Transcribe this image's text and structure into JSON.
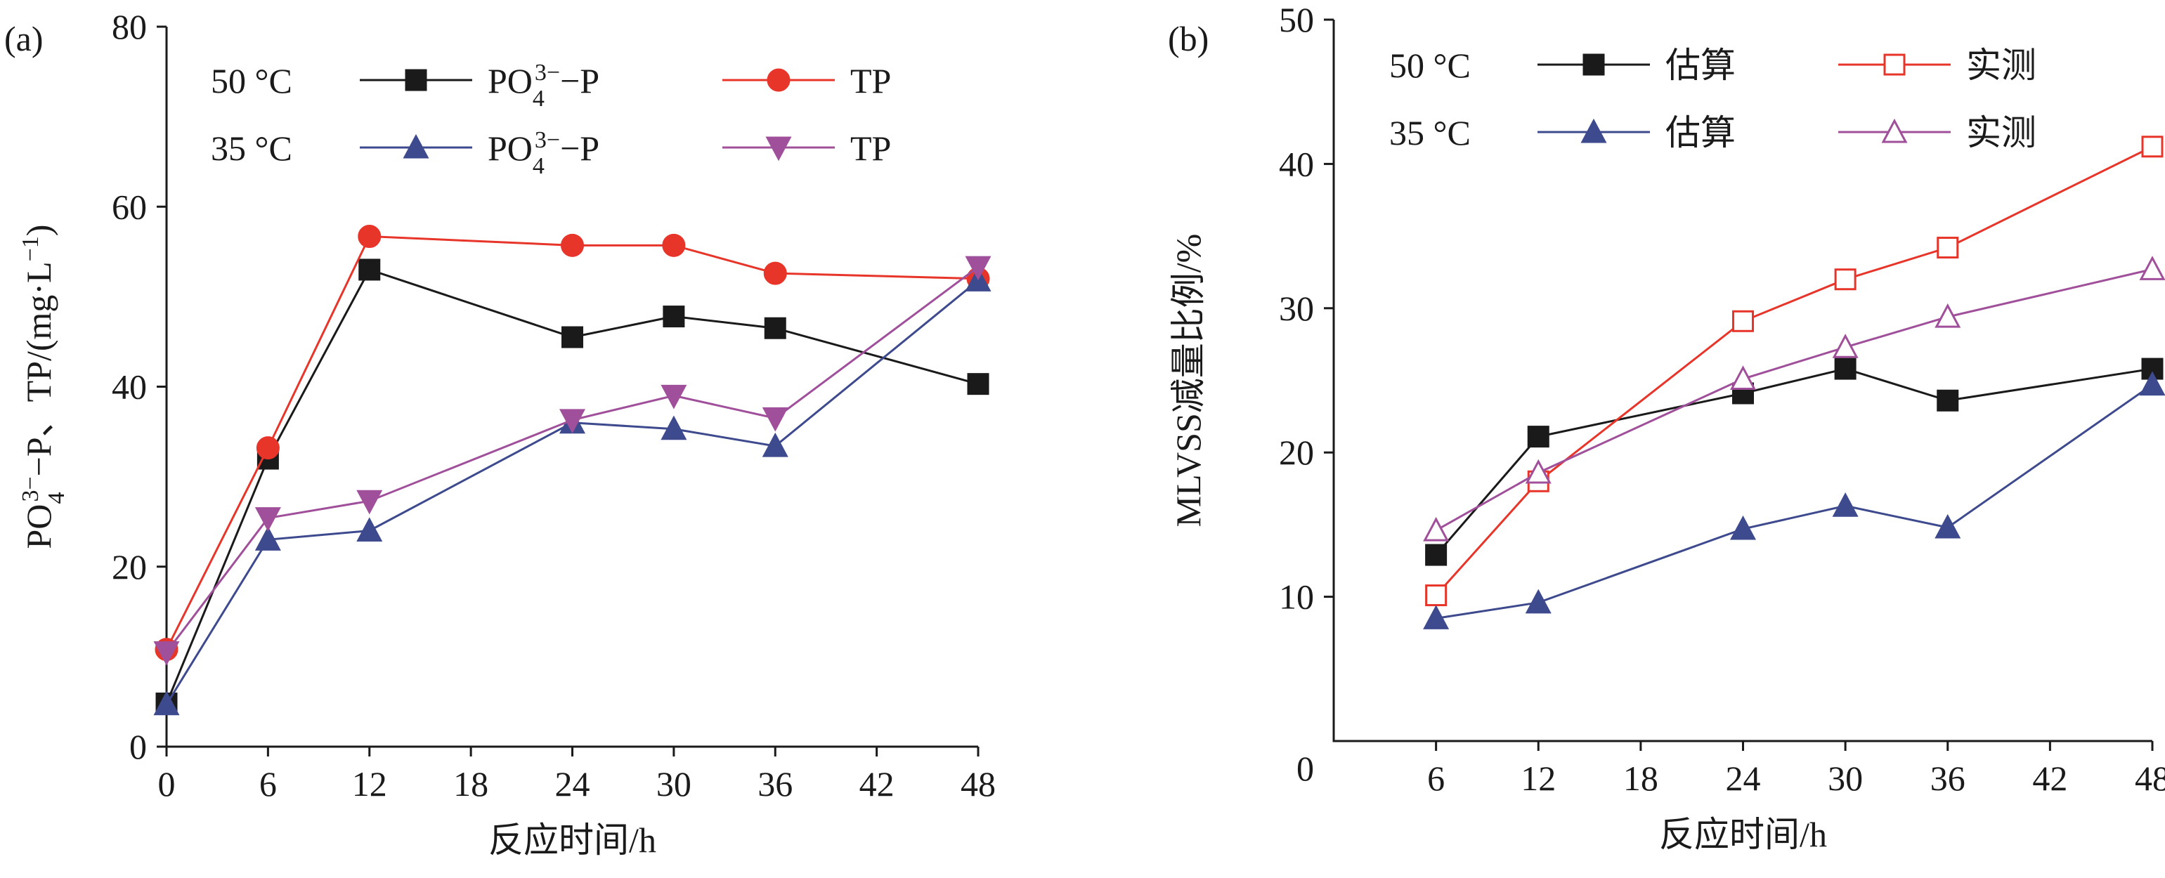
{
  "chart_data": [
    {
      "panel": "(a)",
      "type": "line",
      "xlabel": "反应时间/h",
      "ylabel": {
        "pre": "PO",
        "sub": "4",
        "sup": "3−",
        "post": "−P、TP/(mg·L",
        "unit_sup": "−1",
        "close": ")"
      },
      "xlim": [
        0,
        48
      ],
      "ylim": [
        0,
        80
      ],
      "xticks": [
        0,
        6,
        12,
        18,
        24,
        30,
        36,
        42,
        48
      ],
      "yticks": [
        0,
        20,
        40,
        60,
        80
      ],
      "legend_groups": [
        "50 °C",
        "35 °C"
      ],
      "series": [
        {
          "group": 0,
          "name": {
            "pre": "PO",
            "sub": "4",
            "sup": "3−",
            "post": "−P"
          },
          "color": "#1a1a1a",
          "marker": "square-filled",
          "x": [
            0,
            6,
            12,
            24,
            30,
            36,
            48
          ],
          "values": [
            4.8,
            32,
            53,
            45.5,
            47.8,
            46.5,
            40.3
          ]
        },
        {
          "group": 0,
          "name": {
            "pre": "TP"
          },
          "color": "#e8352a",
          "marker": "circle-filled",
          "x": [
            0,
            6,
            12,
            24,
            30,
            36,
            48
          ],
          "values": [
            10.8,
            33.2,
            56.7,
            55.7,
            55.7,
            52.6,
            52
          ]
        },
        {
          "group": 1,
          "name": {
            "pre": "PO",
            "sub": "4",
            "sup": "3−",
            "post": "−P"
          },
          "color": "#3e4a8e",
          "marker": "triangle-up-filled",
          "x": [
            0,
            6,
            12,
            24,
            30,
            36,
            48
          ],
          "values": [
            4.7,
            23,
            24,
            36,
            35.3,
            33.4,
            51.8
          ]
        },
        {
          "group": 1,
          "name": {
            "pre": "TP"
          },
          "color": "#a0509a",
          "marker": "triangle-down-filled",
          "x": [
            0,
            6,
            12,
            24,
            30,
            36,
            48
          ],
          "values": [
            10.5,
            25.4,
            27.3,
            36.3,
            39,
            36.5,
            53.3
          ]
        }
      ]
    },
    {
      "panel": "(b)",
      "type": "line",
      "xlabel": "反应时间/h",
      "ylabel": "MLVSS减量比例/%",
      "xlim": [
        0,
        48
      ],
      "ylim": [
        0,
        50
      ],
      "xticks": [
        6,
        12,
        18,
        24,
        30,
        36,
        42,
        48
      ],
      "yticks": [
        10,
        20,
        30,
        40,
        50
      ],
      "origin_label": "0",
      "legend_groups": [
        "50 °C",
        "35 °C"
      ],
      "series": [
        {
          "group": 0,
          "name": "估算",
          "color": "#1a1a1a",
          "marker": "square-filled",
          "x": [
            6,
            12,
            24,
            30,
            36,
            48
          ],
          "values": [
            12.9,
            21.1,
            24.1,
            25.8,
            23.6,
            25.8
          ]
        },
        {
          "group": 0,
          "name": "实测",
          "color": "#e8352a",
          "marker": "square-open",
          "x": [
            6,
            12,
            24,
            30,
            36,
            48
          ],
          "values": [
            10.1,
            18,
            29.1,
            32,
            34.2,
            41.2
          ]
        },
        {
          "group": 1,
          "name": "估算",
          "color": "#3e4a8e",
          "marker": "triangle-up-filled",
          "x": [
            6,
            12,
            24,
            30,
            36,
            48
          ],
          "values": [
            8.5,
            9.6,
            14.7,
            16.3,
            14.8,
            24.7
          ]
        },
        {
          "group": 1,
          "name": "实测",
          "color": "#a0509a",
          "marker": "triangle-up-open",
          "x": [
            6,
            12,
            24,
            30,
            36,
            48
          ],
          "values": [
            14.6,
            18.6,
            25.1,
            27.3,
            29.4,
            32.7
          ]
        }
      ]
    }
  ]
}
